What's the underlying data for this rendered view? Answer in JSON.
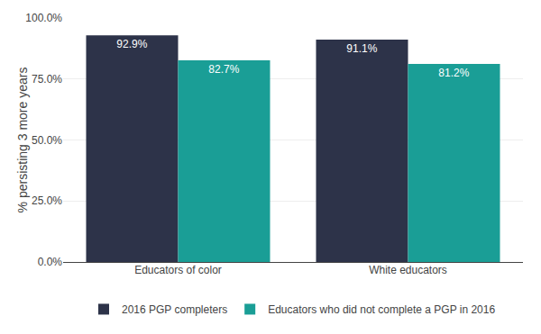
{
  "chart_data": {
    "type": "bar",
    "categories": [
      "Educators of color",
      "White educators"
    ],
    "series": [
      {
        "name": "2016 PGP completers",
        "color": "#2d3349",
        "values": [
          92.9,
          91.1
        ],
        "value_labels": [
          "92.9%",
          "91.1%"
        ]
      },
      {
        "name": "Educators who did not complete a PGP in 2016",
        "color": "#1a9e96",
        "values": [
          82.7,
          81.2
        ],
        "value_labels": [
          "82.7%",
          "81.2%"
        ]
      }
    ],
    "ylabel": "% persisting 3 more years",
    "ylim": [
      0,
      100
    ],
    "yticks": [
      {
        "value": 0,
        "label": "0.0%"
      },
      {
        "value": 25,
        "label": "25.0%"
      },
      {
        "value": 50,
        "label": "50.0%"
      },
      {
        "value": 75,
        "label": "75.0%"
      },
      {
        "value": 100,
        "label": "100.0%"
      }
    ],
    "grid": true,
    "legend": "bottom",
    "data_labels": true
  }
}
